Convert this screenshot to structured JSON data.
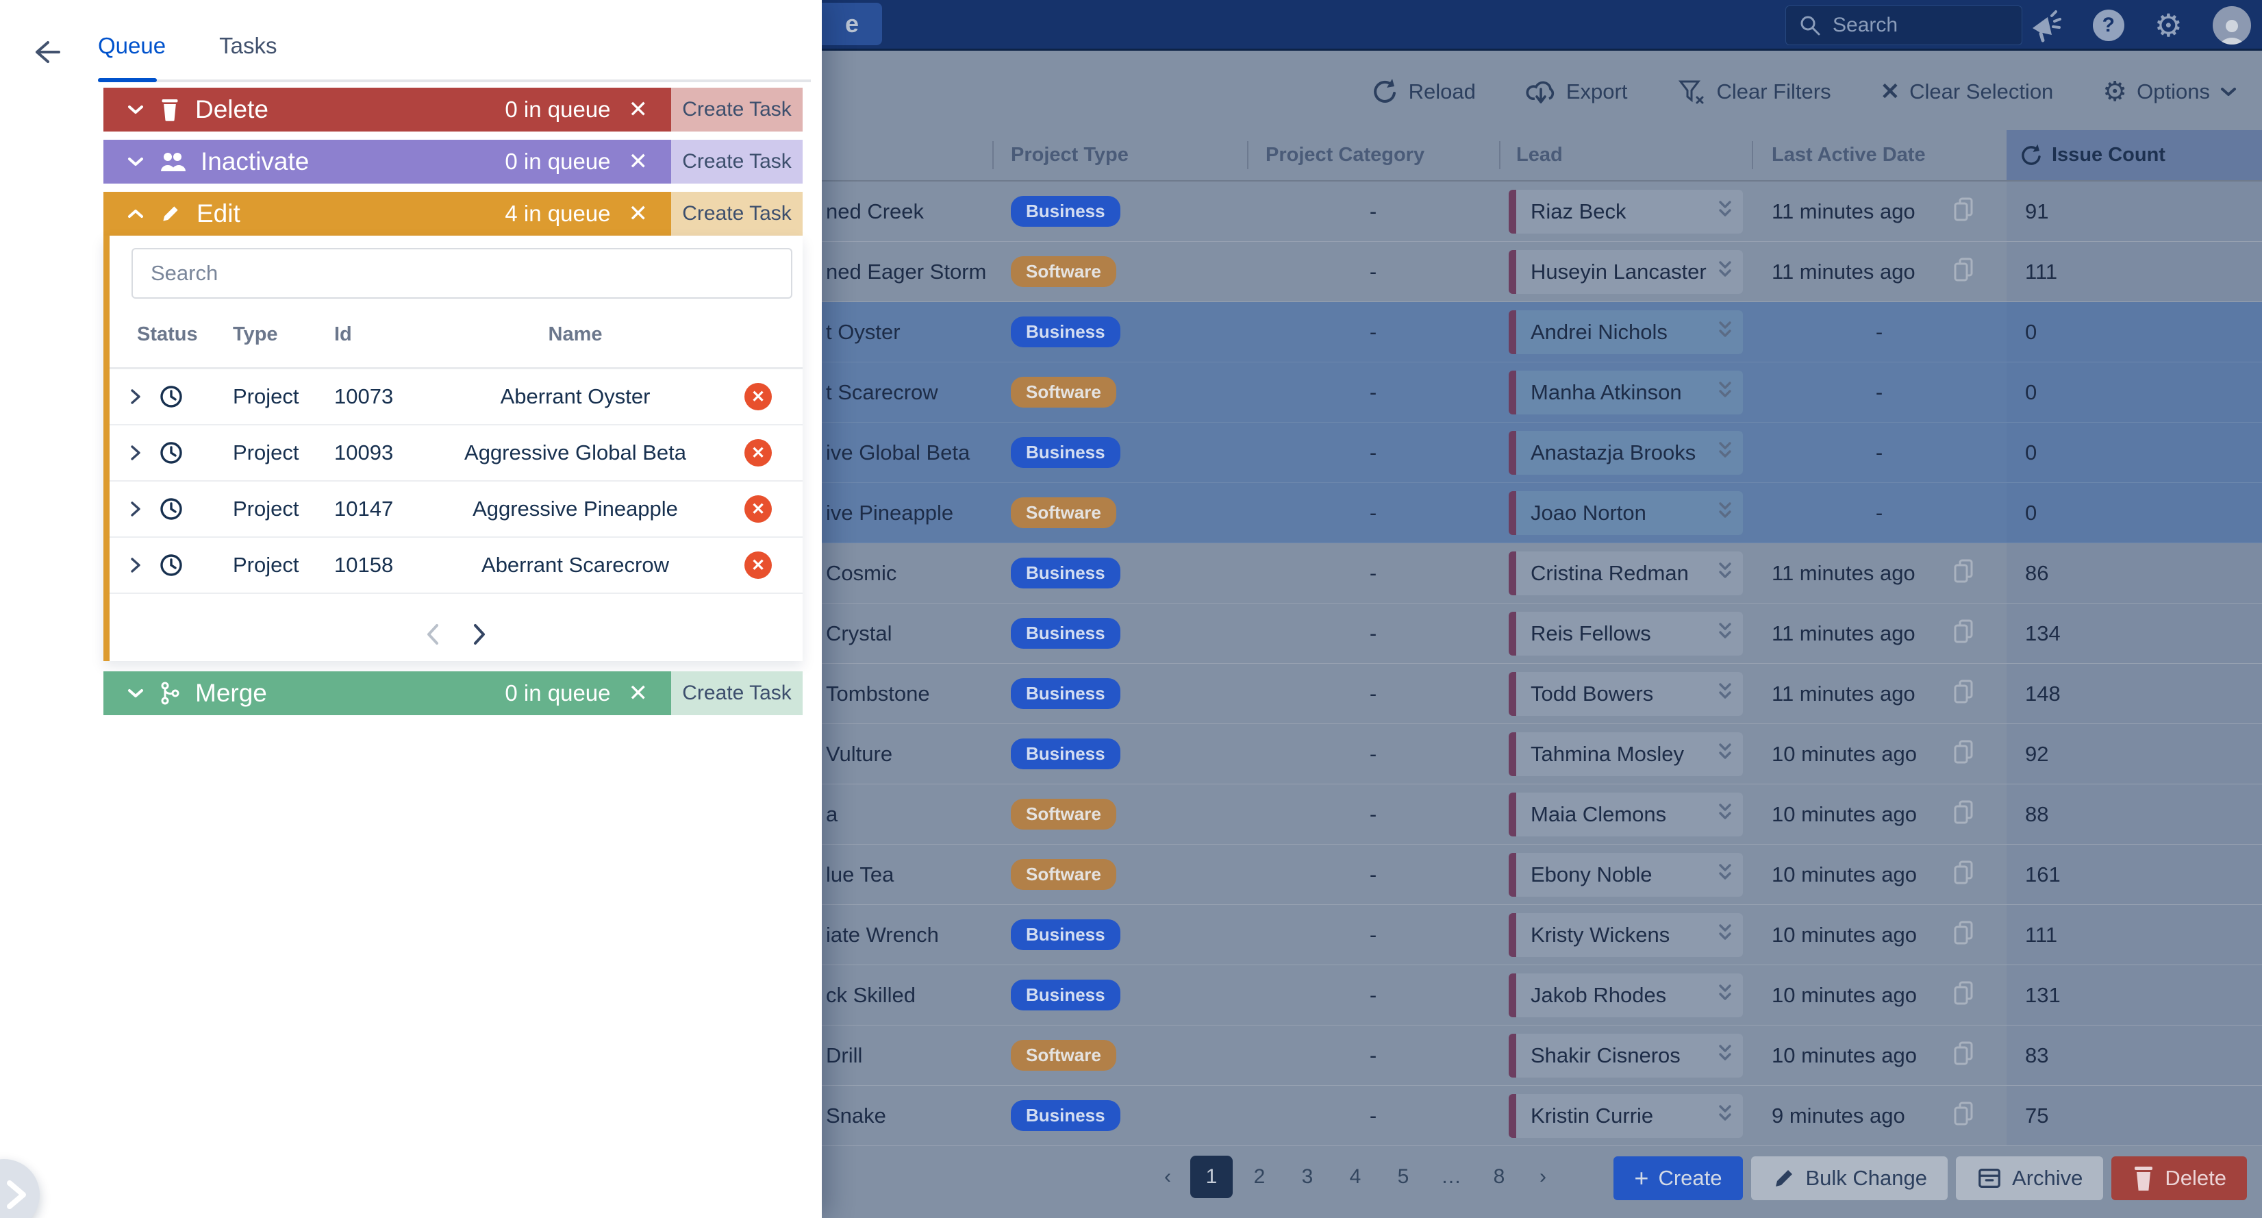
{
  "top_bar": {
    "search_placeholder": "Search",
    "partial_button_text": "e"
  },
  "toolbar": {
    "reload": "Reload",
    "export": "Export",
    "clear_filters": "Clear Filters",
    "clear_selection": "Clear Selection",
    "options": "Options"
  },
  "table": {
    "columns": {
      "project_type": "Project Type",
      "project_category": "Project Category",
      "lead": "Lead",
      "last_active_date": "Last Active Date",
      "issue_count": "Issue Count"
    },
    "badge_colors": {
      "Business": "#2456c8",
      "Software": "#b28048"
    },
    "rows": [
      {
        "name": "ned Creek",
        "type": "Business",
        "category": "-",
        "lead": "Riaz Beck",
        "last_active": "11 minutes ago",
        "issue_count": "91",
        "selected": false
      },
      {
        "name": "ned Eager Storm",
        "type": "Software",
        "category": "-",
        "lead": "Huseyin Lancaster",
        "last_active": "11 minutes ago",
        "issue_count": "111",
        "selected": false
      },
      {
        "name": "t Oyster",
        "type": "Business",
        "category": "-",
        "lead": "Andrei Nichols",
        "last_active": "-",
        "issue_count": "0",
        "selected": true
      },
      {
        "name": "t Scarecrow",
        "type": "Software",
        "category": "-",
        "lead": "Manha Atkinson",
        "last_active": "-",
        "issue_count": "0",
        "selected": true
      },
      {
        "name": "ive Global Beta",
        "type": "Business",
        "category": "-",
        "lead": "Anastazja Brooks",
        "last_active": "-",
        "issue_count": "0",
        "selected": true
      },
      {
        "name": "ive Pineapple",
        "type": "Software",
        "category": "-",
        "lead": "Joao Norton",
        "last_active": "-",
        "issue_count": "0",
        "selected": true
      },
      {
        "name": "Cosmic",
        "type": "Business",
        "category": "-",
        "lead": "Cristina Redman",
        "last_active": "11 minutes ago",
        "issue_count": "86",
        "selected": false
      },
      {
        "name": "Crystal",
        "type": "Business",
        "category": "-",
        "lead": "Reis Fellows",
        "last_active": "11 minutes ago",
        "issue_count": "134",
        "selected": false
      },
      {
        "name": "Tombstone",
        "type": "Business",
        "category": "-",
        "lead": "Todd Bowers",
        "last_active": "11 minutes ago",
        "issue_count": "148",
        "selected": false
      },
      {
        "name": "Vulture",
        "type": "Business",
        "category": "-",
        "lead": "Tahmina Mosley",
        "last_active": "10 minutes ago",
        "issue_count": "92",
        "selected": false
      },
      {
        "name": "a",
        "type": "Software",
        "category": "-",
        "lead": "Maia Clemons",
        "last_active": "10 minutes ago",
        "issue_count": "88",
        "selected": false
      },
      {
        "name": "lue Tea",
        "type": "Software",
        "category": "-",
        "lead": "Ebony Noble",
        "last_active": "10 minutes ago",
        "issue_count": "161",
        "selected": false
      },
      {
        "name": "iate Wrench",
        "type": "Business",
        "category": "-",
        "lead": "Kristy Wickens",
        "last_active": "10 minutes ago",
        "issue_count": "111",
        "selected": false
      },
      {
        "name": "ck Skilled",
        "type": "Business",
        "category": "-",
        "lead": "Jakob Rhodes",
        "last_active": "10 minutes ago",
        "issue_count": "131",
        "selected": false
      },
      {
        "name": "Drill",
        "type": "Software",
        "category": "-",
        "lead": "Shakir Cisneros",
        "last_active": "10 minutes ago",
        "issue_count": "83",
        "selected": false
      },
      {
        "name": "Snake",
        "type": "Business",
        "category": "-",
        "lead": "Kristin Currie",
        "last_active": "9 minutes ago",
        "issue_count": "75",
        "selected": false
      }
    ]
  },
  "footer": {
    "pagination": {
      "prev": "‹",
      "next": "›",
      "pages": [
        "1",
        "2",
        "3",
        "4",
        "5",
        "…",
        "8"
      ],
      "active": "1"
    },
    "buttons": {
      "create": "Create",
      "bulk_change": "Bulk Change",
      "archive": "Archive",
      "delete": "Delete"
    }
  },
  "panel": {
    "tabs": {
      "queue": "Queue",
      "tasks": "Tasks",
      "active": "Queue"
    },
    "create_task_label": "Create Task",
    "queues": [
      {
        "label": "Delete",
        "count": "0 in queue",
        "color": "#b1433f",
        "light": "#e0b4b2",
        "icon": "trash-icon",
        "expanded": false
      },
      {
        "label": "Inactivate",
        "count": "0 in queue",
        "color": "#8d80cf",
        "light": "#cfc9ed",
        "icon": "people-icon",
        "expanded": false
      },
      {
        "label": "Edit",
        "count": "4 in queue",
        "color": "#dd9b2f",
        "light": "#efd7ac",
        "icon": "pencil-icon",
        "expanded": true
      },
      {
        "label": "Merge",
        "count": "0 in queue",
        "color": "#66b28c",
        "light": "#cfe6da",
        "icon": "merge-icon",
        "expanded": false
      }
    ],
    "edit_queue": {
      "search_placeholder": "Search",
      "columns": {
        "status": "Status",
        "type": "Type",
        "id": "Id",
        "name": "Name"
      },
      "rows": [
        {
          "type": "Project",
          "id": "10073",
          "name": "Aberrant Oyster"
        },
        {
          "type": "Project",
          "id": "10093",
          "name": "Aggressive Global Beta"
        },
        {
          "type": "Project",
          "id": "10147",
          "name": "Aggressive Pineapple"
        },
        {
          "type": "Project",
          "id": "10158",
          "name": "Aberrant Scarecrow"
        }
      ]
    }
  }
}
